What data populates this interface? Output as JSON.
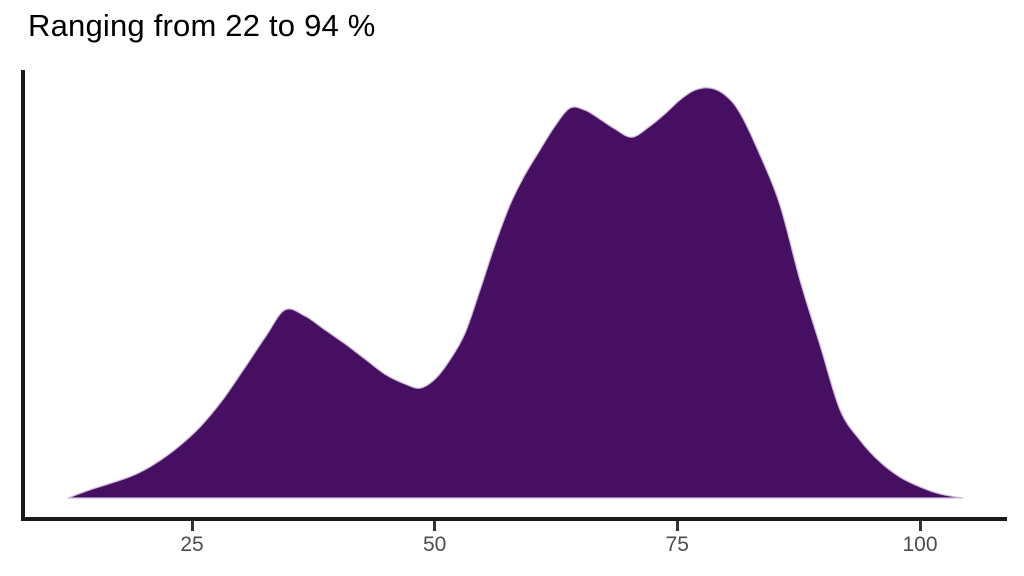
{
  "title": "Ranging from 22 to 94 %",
  "colors": {
    "background": "#FFFFFF",
    "title": "#000000",
    "density_fill": "#470F62",
    "density_edge": "#CDBAD8",
    "axis_line": "#1A1A1A",
    "tick_mark": "#333333",
    "tick_label": "#4D4D4D"
  },
  "chart_data": {
    "type": "area",
    "subtype": "density",
    "title": "Ranging from 22 to 94 %",
    "xlabel": "",
    "ylabel": "",
    "legend": "none",
    "grid": false,
    "x_ticks": [
      25,
      50,
      75,
      100
    ],
    "x_tick_labels": [
      "25",
      "50",
      "75",
      "100"
    ],
    "xlim": [
      7.5,
      109
    ],
    "ylim": [
      0,
      1.05
    ],
    "data_range_note": "values range from 22 to 94 %",
    "x": [
      12.23,
      14.5,
      16.76,
      19.03,
      21.29,
      23.56,
      25.82,
      28.09,
      30.36,
      32.62,
      34.58,
      36.64,
      38.7,
      40.76,
      42.82,
      44.88,
      46.94,
      48.49,
      50.03,
      51.58,
      53.12,
      54.67,
      56.21,
      57.76,
      59.3,
      60.85,
      62.39,
      63.94,
      65.48,
      67.03,
      68.58,
      70.33,
      72.18,
      73.73,
      75.27,
      76.82,
      78.36,
      79.91,
      81.45,
      83.51,
      85.57,
      87.63,
      89.7,
      91.76,
      93.82,
      95.88,
      97.94,
      100.0,
      102.06,
      104.43
    ],
    "density": [
      0,
      0.02,
      0.037,
      0.056,
      0.085,
      0.124,
      0.173,
      0.237,
      0.315,
      0.395,
      0.459,
      0.444,
      0.41,
      0.376,
      0.339,
      0.302,
      0.278,
      0.268,
      0.29,
      0.337,
      0.402,
      0.507,
      0.617,
      0.715,
      0.788,
      0.849,
      0.907,
      0.951,
      0.946,
      0.924,
      0.9,
      0.88,
      0.907,
      0.937,
      0.971,
      0.995,
      1.0,
      0.983,
      0.939,
      0.837,
      0.715,
      0.532,
      0.373,
      0.215,
      0.141,
      0.088,
      0.051,
      0.027,
      0.01,
      0
    ]
  }
}
